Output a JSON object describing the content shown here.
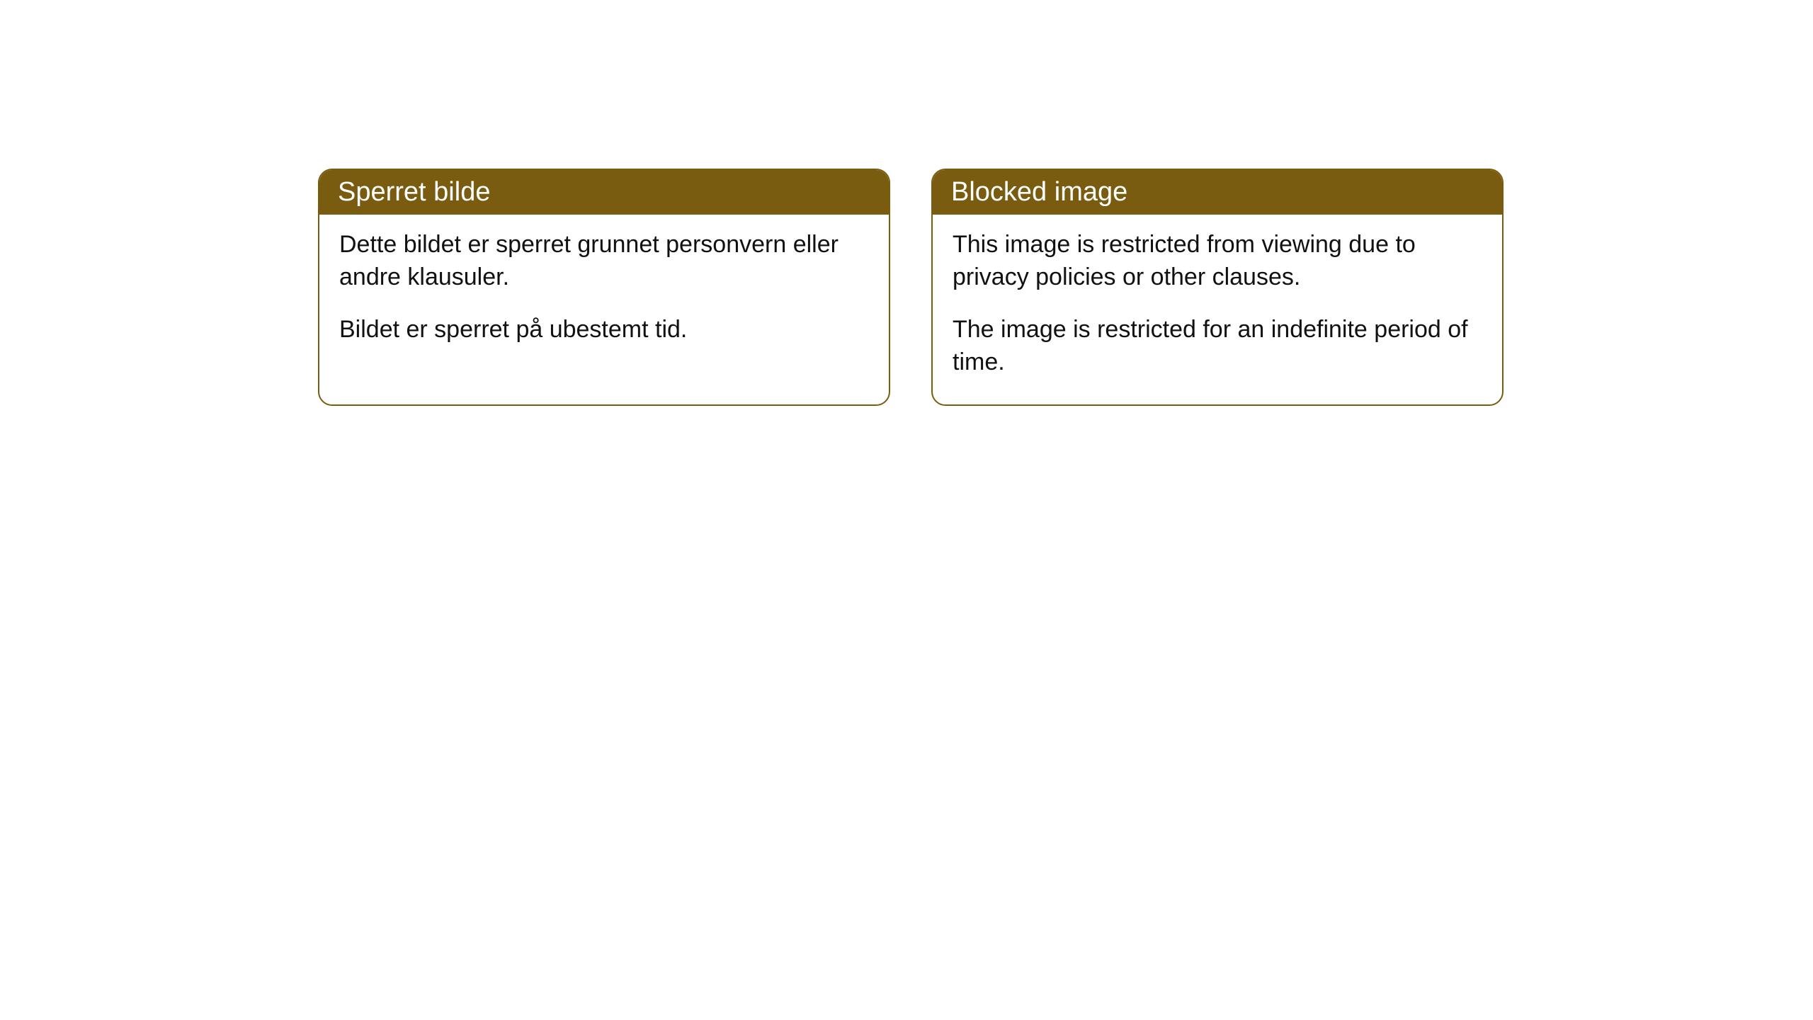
{
  "cards": [
    {
      "title": "Sperret bilde",
      "paragraph1": "Dette bildet er sperret grunnet personvern eller andre klausuler.",
      "paragraph2": "Bildet er sperret på ubestemt tid."
    },
    {
      "title": "Blocked image",
      "paragraph1": "This image is restricted from viewing due to privacy policies or other clauses.",
      "paragraph2": "The image is restricted for an indefinite period of time."
    }
  ],
  "style": {
    "header_background": "#7a5c11",
    "header_text_color": "#ffffff",
    "border_color": "#7a5c11",
    "body_text_color": "#111111",
    "page_background": "#ffffff",
    "border_radius": 20,
    "header_fontsize": 38,
    "body_fontsize": 34
  }
}
